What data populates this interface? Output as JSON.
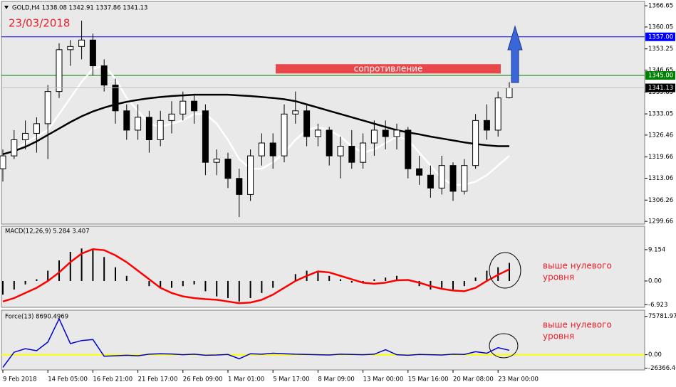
{
  "chart_data": [
    {
      "type": "candlestick",
      "title": "GOLD,H4  1338.08 1342.91 1337.86 1341.13",
      "annotation": "23/03/2018",
      "x": [
        "9 Feb 2018",
        null,
        null,
        null,
        "14 Feb 05:00",
        null,
        null,
        null,
        "16 Feb 21:00",
        null,
        null,
        null,
        "21 Feb 17:00",
        null,
        null,
        null,
        "26 Feb 09:00",
        null,
        null,
        null,
        "1 Mar 01:00",
        null,
        null,
        null,
        "5 Mar 17:00",
        null,
        null,
        null,
        "8 Mar 09:00",
        null,
        null,
        null,
        "13 Mar 00:00",
        null,
        null,
        null,
        "15 Mar 16:00",
        null,
        null,
        null,
        "20 Mar 08:00",
        null,
        null,
        null,
        "23 Mar 00:00",
        null
      ],
      "open": [
        1316,
        1320,
        1325,
        1327,
        1330,
        1340,
        1353,
        1354,
        1356,
        1348,
        1342,
        1334,
        1328,
        1332,
        1325,
        1331,
        1333,
        1337,
        1334,
        1318,
        1319,
        1313,
        1308,
        1320,
        1324,
        1320,
        1333,
        1334,
        1326,
        1328,
        1320,
        1323,
        1318,
        1324,
        1328,
        1326,
        1328,
        1316,
        1314,
        1310,
        1317,
        1309,
        1317,
        1331,
        1328,
        1338.08
      ],
      "high": [
        1322,
        1328,
        1331,
        1332,
        1342,
        1355,
        1356,
        1362,
        1358,
        1350,
        1344,
        1336,
        1336,
        1334,
        1334,
        1337,
        1340,
        1339,
        1336,
        1322,
        1321,
        1316,
        1322,
        1327,
        1327,
        1336,
        1340,
        1336,
        1330,
        1329,
        1326,
        1328,
        1327,
        1331,
        1331,
        1330,
        1329,
        1320,
        1317,
        1320,
        1318,
        1319,
        1333,
        1336,
        1340,
        1342.91
      ],
      "low": [
        1312,
        1319,
        1322,
        1321,
        1319,
        1338,
        1348,
        1350,
        1345,
        1340,
        1330,
        1325,
        1325,
        1321,
        1323,
        1327,
        1331,
        1330,
        1314,
        1314,
        1310,
        1301,
        1306,
        1317,
        1316,
        1318,
        1330,
        1323,
        1323,
        1317,
        1313,
        1316,
        1316,
        1320,
        1322,
        1322,
        1313,
        1311,
        1307,
        1308,
        1306,
        1308,
        1316,
        1325,
        1326,
        1337.86
      ],
      "close": [
        1320,
        1325,
        1327,
        1330,
        1340,
        1353,
        1354,
        1356,
        1348,
        1342,
        1334,
        1328,
        1332,
        1325,
        1331,
        1333,
        1337,
        1334,
        1318,
        1319,
        1313,
        1308,
        1320,
        1324,
        1320,
        1333,
        1334,
        1326,
        1328,
        1320,
        1323,
        1318,
        1324,
        1328,
        1326,
        1328,
        1316,
        1314,
        1310,
        1317,
        1309,
        1317,
        1331,
        1328,
        1338,
        1341.13
      ],
      "lines": [
        {
          "color": "#ffffff",
          "values": [
            null,
            1322,
            1324,
            1326,
            1328,
            1333,
            1338,
            1343,
            1347,
            1348,
            1344,
            1338,
            1334,
            1330,
            1329,
            1330,
            1331,
            1333,
            1333,
            1330,
            1325,
            1319,
            1316,
            1316,
            1318,
            1321,
            1325,
            1328,
            1329,
            1328,
            1326,
            1323,
            1321,
            1322,
            1324,
            1326,
            1325,
            1321,
            1317,
            1313,
            1311,
            1311,
            1312,
            1314,
            1317,
            1320
          ]
        },
        {
          "color": "#000000",
          "values": [
            1320.5,
            1321.5,
            1322.8,
            1324.5,
            1326.5,
            1328.5,
            1330.5,
            1332.3,
            1333.8,
            1335,
            1336,
            1336.8,
            1337.4,
            1337.9,
            1338.3,
            1338.6,
            1338.8,
            1339,
            1339,
            1339,
            1339,
            1338.8,
            1338.6,
            1338.3,
            1338,
            1337.6,
            1337,
            1336,
            1335,
            1334,
            1333,
            1332,
            1331,
            1330,
            1329,
            1328,
            1327.3,
            1326.7,
            1326,
            1325.4,
            1324.8,
            1324.2,
            1323.7,
            1323.3,
            1323,
            1323
          ]
        }
      ],
      "levels": [
        {
          "value": 1357,
          "label": "1357.00",
          "color": "#0000ff"
        },
        {
          "value": 1345,
          "label": "1345.00",
          "color": "#008000"
        }
      ],
      "zone": {
        "label": "сопротивление",
        "range": [
          1345.6,
          1348.5
        ],
        "color": "#e8474c"
      },
      "ylim": [
        1298.8,
        1368.0
      ],
      "yticks": [
        1366.65,
        1360.05,
        1353.25,
        1346.65,
        1339.85,
        1333.05,
        1326.46,
        1319.66,
        1313.06,
        1306.26,
        1299.66
      ]
    },
    {
      "type": "macd",
      "title": "MACD(12,26,9) 5.284 3.407",
      "annotation": [
        "выше нулевого",
        "уровня"
      ],
      "histogram": [
        -4,
        -2.5,
        -1,
        0.5,
        3,
        6,
        8.5,
        9.5,
        9,
        7,
        4,
        1.5,
        0,
        -1.5,
        -2,
        -2,
        -1.5,
        -1,
        -3,
        -4.5,
        -5,
        -6,
        -5,
        -3.5,
        -2,
        0,
        2,
        3,
        2.5,
        1.5,
        0.5,
        -0.5,
        -0.5,
        0.5,
        1,
        1.5,
        0,
        -1.5,
        -2.5,
        -2,
        -2.5,
        -1.5,
        1,
        3,
        4,
        5.284
      ],
      "signal": [
        -6,
        -5,
        -3.5,
        -2,
        0,
        2.5,
        5.5,
        8,
        9.3,
        9,
        7.5,
        5.5,
        3,
        0.5,
        -2,
        -3.5,
        -4.5,
        -5,
        -5.3,
        -5.5,
        -6,
        -6.5,
        -6.3,
        -5.5,
        -4,
        -2,
        0,
        1.5,
        2.8,
        2.5,
        1.5,
        0.5,
        -0.5,
        -0.8,
        -0.5,
        0.2,
        0.3,
        -0.5,
        -1.5,
        -2.3,
        -2.8,
        -3,
        -2,
        0,
        1.8,
        3.407
      ],
      "signal_color": "#ff0000",
      "ylim": [
        -7.7,
        16
      ],
      "yticks": [
        9.154,
        {
          "value": 0,
          "label": "0.00"
        },
        -6.923
      ]
    },
    {
      "type": "line",
      "title": "Force(13) 8690.4969",
      "annotation": [
        "выше нулевого",
        "уровня"
      ],
      "values": [
        -25000,
        5000,
        12000,
        8000,
        25000,
        71000,
        22000,
        28000,
        30000,
        -3000,
        -2000,
        -1000,
        -2000,
        1000,
        2000,
        1500,
        0,
        1000,
        -1000,
        -500,
        500,
        -8000,
        2000,
        1000,
        3000,
        2000,
        1000,
        500,
        0,
        -500,
        1000,
        500,
        0,
        1000,
        10000,
        0,
        -1000,
        500,
        0,
        -500,
        1000,
        500,
        6000,
        3000,
        14000,
        8690.4969
      ],
      "color": "#0000cc",
      "zero_color": "#ffff00",
      "ylim": [
        -30000,
        88000
      ],
      "yticks": [
        75781.97,
        {
          "value": 0,
          "label": "0.00"
        },
        -26366.46
      ]
    }
  ]
}
